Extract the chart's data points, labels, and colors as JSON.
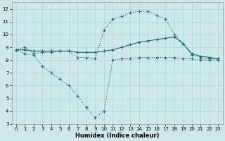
{
  "bg_color": "#cce8ea",
  "grid_color": "#b8d8da",
  "line_color": "#1a6b6b",
  "xlabel": "Humidex (Indice chaleur)",
  "xlim": [
    -0.5,
    23.5
  ],
  "ylim": [
    3,
    12.5
  ],
  "xticks": [
    0,
    1,
    2,
    3,
    4,
    5,
    6,
    7,
    8,
    9,
    10,
    11,
    12,
    13,
    14,
    15,
    16,
    17,
    18,
    19,
    20,
    21,
    22,
    23
  ],
  "yticks": [
    3,
    4,
    5,
    6,
    7,
    8,
    9,
    10,
    11,
    12
  ],
  "line1_x": [
    0,
    1,
    2,
    3,
    4,
    5,
    6,
    7,
    8,
    9,
    10,
    11,
    12,
    13,
    14,
    15,
    16,
    17,
    18,
    19,
    20,
    21,
    22,
    23
  ],
  "line1_y": [
    8.8,
    9.0,
    8.5,
    8.6,
    8.6,
    8.7,
    8.7,
    8.2,
    8.2,
    8.1,
    10.3,
    11.2,
    11.4,
    11.7,
    11.8,
    11.8,
    11.5,
    11.2,
    10.0,
    9.3,
    8.4,
    8.2,
    8.1,
    8.1
  ],
  "line2_x": [
    0,
    1,
    2,
    3,
    4,
    5,
    6,
    7,
    8,
    9,
    10,
    11,
    12,
    13,
    14,
    15,
    16,
    17,
    18,
    19,
    20,
    21,
    22,
    23
  ],
  "line2_y": [
    8.8,
    8.8,
    8.7,
    8.7,
    8.7,
    8.7,
    8.7,
    8.6,
    8.6,
    8.6,
    8.7,
    8.8,
    9.0,
    9.2,
    9.4,
    9.5,
    9.6,
    9.7,
    9.8,
    9.3,
    8.5,
    8.3,
    8.2,
    8.1
  ],
  "line3_x": [
    0,
    1,
    2,
    3,
    4,
    5,
    6,
    7,
    8,
    9,
    10,
    11,
    12,
    13,
    14,
    15,
    16,
    17,
    18,
    19,
    20,
    21,
    22,
    23
  ],
  "line3_y": [
    8.8,
    8.5,
    8.4,
    7.5,
    7.0,
    6.5,
    6.0,
    5.2,
    4.3,
    3.5,
    4.0,
    8.0,
    8.1,
    8.1,
    8.2,
    8.2,
    8.2,
    8.2,
    8.2,
    8.1,
    8.1,
    8.0,
    8.0,
    8.0
  ]
}
